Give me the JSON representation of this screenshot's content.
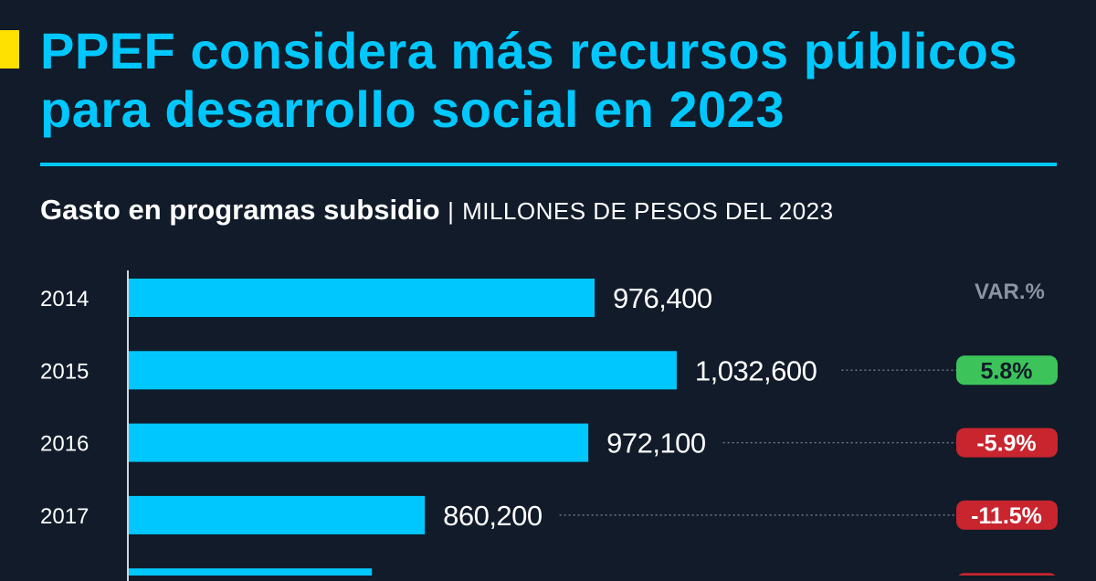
{
  "title": "PPEF considera más recursos públicos para desarrollo social en 2023",
  "subtitle": "Gasto en programas subsidio",
  "separator": "|",
  "units": "MILLONES DE PESOS DEL 2023",
  "var_header": "VAR.%",
  "colors": {
    "bar": "#00c8ff",
    "positive": "#3cc45a",
    "negative": "#c8252e",
    "accent": "#ffe100",
    "background": "#111b29"
  },
  "chart_data": {
    "type": "bar",
    "orientation": "horizontal",
    "title": "Gasto en programas subsidio",
    "xlabel": "MILLONES DE PESOS DEL 2023",
    "xlim": [
      657000,
      1060000
    ],
    "categories": [
      "2014",
      "2015",
      "2016",
      "2017"
    ],
    "values": [
      976400,
      1032600,
      972100,
      860200
    ],
    "labels": [
      "976,400",
      "1,032,600",
      "972,100",
      "860,200"
    ],
    "variation": [
      null,
      "5.8%",
      "-5.9%",
      "-11.5%"
    ],
    "variation_sign": [
      0,
      1,
      -1,
      -1
    ],
    "partial_next_bar": {
      "value_estimate": 824000,
      "variation_sign": -1
    }
  }
}
